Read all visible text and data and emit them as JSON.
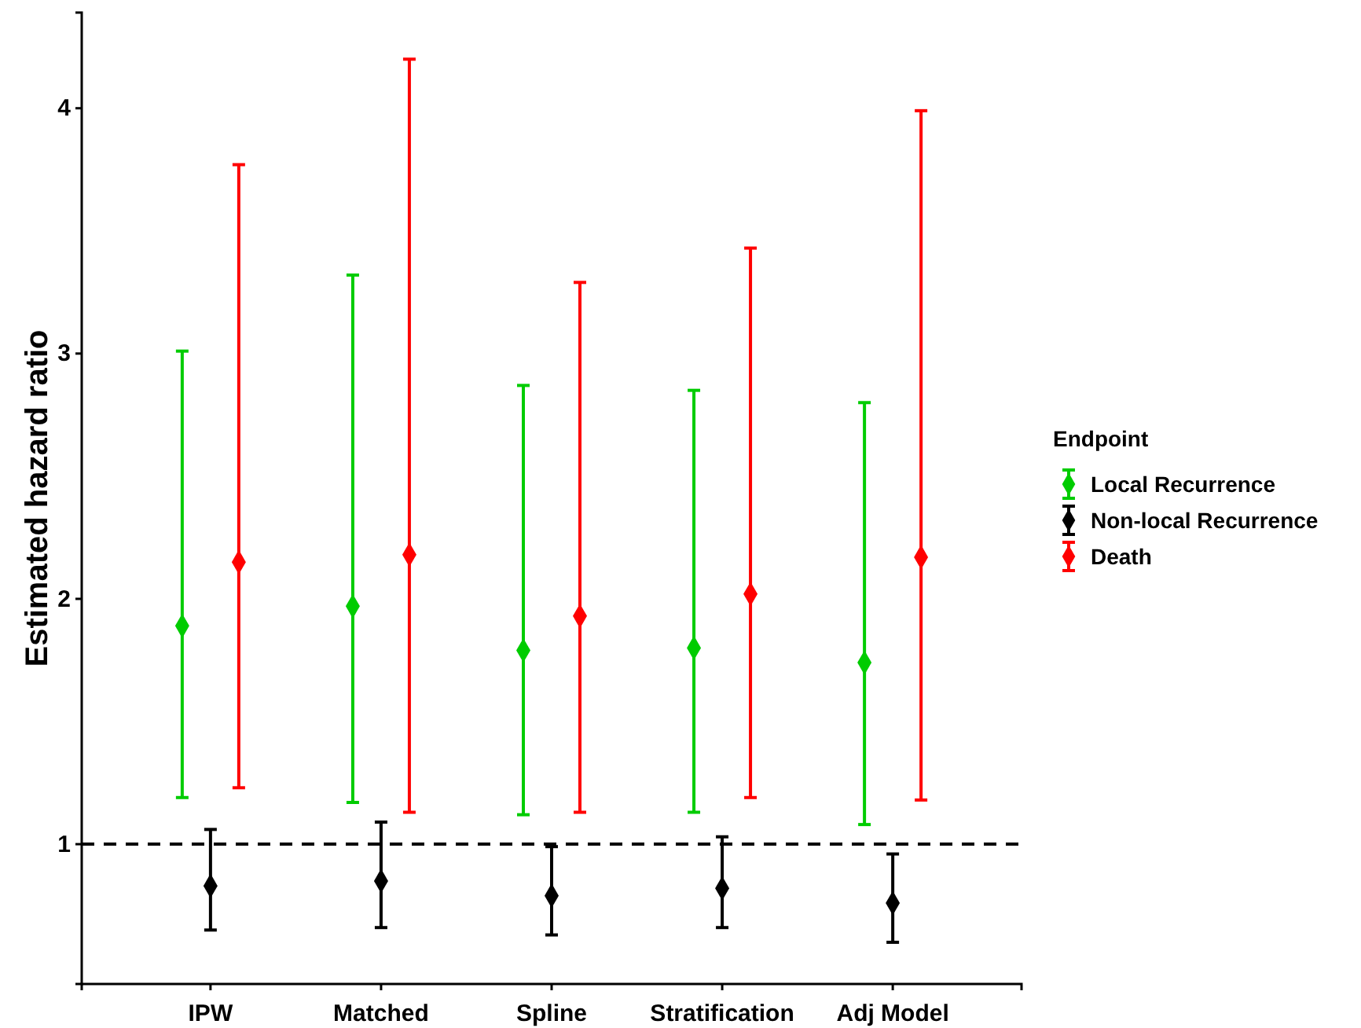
{
  "chart_data": {
    "type": "scatter",
    "ylabel": "Estimated hazard ratio",
    "legend_title": "Endpoint",
    "legend": "right",
    "marker": "diamond",
    "grid": false,
    "categories": [
      "IPW",
      "Matched",
      "Spline",
      "Stratification",
      "Adj Model"
    ],
    "ylim": [
      0.43,
      4.39
    ],
    "yticks": [
      1,
      2,
      3,
      4
    ],
    "ref_lines": [
      {
        "axis": "y",
        "value": 1,
        "line_style": "dashed",
        "color": "#000000"
      }
    ],
    "series": [
      {
        "name": "Local Recurrence",
        "color": "#00cc00",
        "values": [
          1.89,
          1.97,
          1.79,
          1.8,
          1.74
        ],
        "errors": [
          [
            1.19,
            3.01
          ],
          [
            1.17,
            3.32
          ],
          [
            1.12,
            2.87
          ],
          [
            1.13,
            2.85
          ],
          [
            1.08,
            2.8
          ]
        ]
      },
      {
        "name": "Non-local Recurrence",
        "color": "#000000",
        "values": [
          0.83,
          0.85,
          0.79,
          0.82,
          0.76
        ],
        "errors": [
          [
            0.65,
            1.06
          ],
          [
            0.66,
            1.09
          ],
          [
            0.63,
            0.99
          ],
          [
            0.66,
            1.03
          ],
          [
            0.6,
            0.96
          ]
        ]
      },
      {
        "name": "Death",
        "color": "#ff0000",
        "values": [
          2.15,
          2.18,
          1.93,
          2.02,
          2.17
        ],
        "errors": [
          [
            1.23,
            3.77
          ],
          [
            1.13,
            4.2
          ],
          [
            1.13,
            3.29
          ],
          [
            1.19,
            3.43
          ],
          [
            1.18,
            3.99
          ]
        ]
      }
    ]
  }
}
